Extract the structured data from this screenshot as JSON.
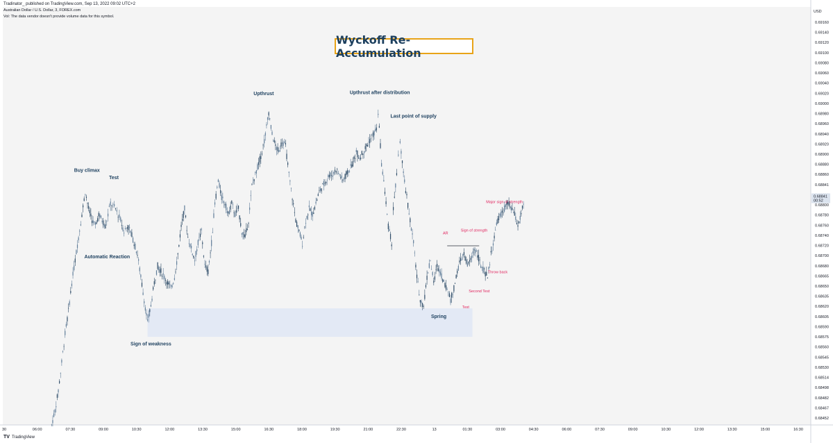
{
  "header": {
    "publisher": "Tradinator_ published on TradingView.com, Sep 13, 2022 09:02 UTC+2",
    "symbol": "Australian Dollar / U.S. Dollar, 3, FOREX.com",
    "volume_note": "Vol: The data vendor doesn't provide volume data for this symbol."
  },
  "footer": {
    "brand": "TradingView"
  },
  "colors": {
    "plot_bg": "#f4f4f4",
    "candle": "#607d99",
    "candle_dark": "#2c4a66",
    "annotation_navy": "#1c3f5e",
    "annotation_red": "#e0245e",
    "zone_fill": "#dfe6f5",
    "title_border": "#e8a317",
    "price_tag": "#dbe3ee"
  },
  "chart_data": {
    "type": "candlestick",
    "title": "Wyckoff Re-Accumulation",
    "currency": "USD",
    "ylim": [
      0.6844,
      0.69175
    ],
    "y_ticks": [
      "0.69160",
      "0.69140",
      "0.69120",
      "0.69100",
      "0.69080",
      "0.69060",
      "0.69040",
      "0.69020",
      "0.69000",
      "0.68980",
      "0.68960",
      "0.68940",
      "0.68920",
      "0.68900",
      "0.68880",
      "0.68860",
      "0.68841",
      "0.68820",
      "0.68800",
      "0.68780",
      "0.68760",
      "0.68740",
      "0.68720",
      "0.68700",
      "0.68680",
      "0.68665",
      "0.68650",
      "0.68635",
      "0.68620",
      "0.68605",
      "0.68590",
      "0.68575",
      "0.68560",
      "0.68545",
      "0.68530",
      "0.68514",
      "0.68498",
      "0.68482",
      "0.68467",
      "0.68452"
    ],
    "x_ticks": [
      "30",
      "06:00",
      "07:30",
      "09:00",
      "10:30",
      "12:00",
      "13:30",
      "15:00",
      "16:30",
      "18:00",
      "19:30",
      "21:00",
      "22:30",
      "13",
      "01:30",
      "03:00",
      "04:30",
      "06:00",
      "07:30",
      "09:00",
      "10:30",
      "12:00",
      "13:30",
      "15:00",
      "16:30"
    ],
    "x_domain": [
      0,
      24
    ],
    "last_price": {
      "value": "0.68841",
      "countdown": "00:52"
    },
    "path_points": [
      [
        1.45,
        0.6844
      ],
      [
        1.55,
        0.68465
      ],
      [
        1.65,
        0.685
      ],
      [
        1.75,
        0.6855
      ],
      [
        1.85,
        0.686
      ],
      [
        1.95,
        0.6864
      ],
      [
        2.05,
        0.6869
      ],
      [
        2.15,
        0.6873
      ],
      [
        2.25,
        0.6877
      ],
      [
        2.35,
        0.6881
      ],
      [
        2.45,
        0.6885
      ],
      [
        2.55,
        0.6882
      ],
      [
        2.65,
        0.688
      ],
      [
        2.75,
        0.6879
      ],
      [
        2.85,
        0.6881
      ],
      [
        2.95,
        0.688
      ],
      [
        3.05,
        0.6879
      ],
      [
        3.2,
        0.6883
      ],
      [
        3.35,
        0.6882
      ],
      [
        3.5,
        0.688
      ],
      [
        3.6,
        0.6878
      ],
      [
        3.7,
        0.6879
      ],
      [
        3.8,
        0.6878
      ],
      [
        3.9,
        0.6876
      ],
      [
        4.0,
        0.6874
      ],
      [
        4.1,
        0.687
      ],
      [
        4.2,
        0.6866
      ],
      [
        4.3,
        0.6862
      ],
      [
        4.4,
        0.6865
      ],
      [
        4.5,
        0.6869
      ],
      [
        4.6,
        0.6872
      ],
      [
        4.7,
        0.6871
      ],
      [
        4.8,
        0.687
      ],
      [
        4.9,
        0.6869
      ],
      [
        5.0,
        0.6868
      ],
      [
        5.1,
        0.687
      ],
      [
        5.2,
        0.6874
      ],
      [
        5.3,
        0.6879
      ],
      [
        5.4,
        0.6882
      ],
      [
        5.5,
        0.6877
      ],
      [
        5.6,
        0.6875
      ],
      [
        5.7,
        0.6873
      ],
      [
        5.8,
        0.6876
      ],
      [
        5.9,
        0.6878
      ],
      [
        6.0,
        0.6872
      ],
      [
        6.1,
        0.6871
      ],
      [
        6.2,
        0.6876
      ],
      [
        6.3,
        0.6883
      ],
      [
        6.4,
        0.6887
      ],
      [
        6.5,
        0.6884
      ],
      [
        6.6,
        0.6883
      ],
      [
        6.7,
        0.6881
      ],
      [
        6.8,
        0.6883
      ],
      [
        6.9,
        0.6881
      ],
      [
        7.0,
        0.6882
      ],
      [
        7.1,
        0.6878
      ],
      [
        7.2,
        0.6877
      ],
      [
        7.3,
        0.688
      ],
      [
        7.4,
        0.6886
      ],
      [
        7.5,
        0.6888
      ],
      [
        7.6,
        0.689
      ],
      [
        7.7,
        0.6892
      ],
      [
        7.8,
        0.6895
      ],
      [
        7.9,
        0.6899
      ],
      [
        8.0,
        0.6895
      ],
      [
        8.1,
        0.6893
      ],
      [
        8.2,
        0.6892
      ],
      [
        8.3,
        0.6894
      ],
      [
        8.4,
        0.6893
      ],
      [
        8.5,
        0.6888
      ],
      [
        8.6,
        0.6884
      ],
      [
        8.7,
        0.688
      ],
      [
        8.8,
        0.6878
      ],
      [
        8.9,
        0.6876
      ],
      [
        9.0,
        0.688
      ],
      [
        9.1,
        0.6882
      ],
      [
        9.2,
        0.6881
      ],
      [
        9.3,
        0.6883
      ],
      [
        9.4,
        0.6885
      ],
      [
        9.5,
        0.6886
      ],
      [
        9.6,
        0.6887
      ],
      [
        9.7,
        0.6888
      ],
      [
        9.8,
        0.6888
      ],
      [
        9.9,
        0.6889
      ],
      [
        10.0,
        0.6888
      ],
      [
        10.1,
        0.6887
      ],
      [
        10.2,
        0.6888
      ],
      [
        10.3,
        0.6889
      ],
      [
        10.4,
        0.689
      ],
      [
        10.5,
        0.6892
      ],
      [
        10.6,
        0.6891
      ],
      [
        10.7,
        0.6892
      ],
      [
        10.8,
        0.6893
      ],
      [
        10.9,
        0.6894
      ],
      [
        11.0,
        0.6895
      ],
      [
        11.1,
        0.6896
      ],
      [
        11.15,
        0.6899
      ],
      [
        11.25,
        0.689
      ],
      [
        11.35,
        0.6885
      ],
      [
        11.45,
        0.6879
      ],
      [
        11.55,
        0.6876
      ],
      [
        11.6,
        0.6882
      ],
      [
        11.7,
        0.6888
      ],
      [
        11.75,
        0.6891
      ],
      [
        11.8,
        0.6894
      ],
      [
        11.9,
        0.6888
      ],
      [
        12.0,
        0.6884
      ],
      [
        12.1,
        0.688
      ],
      [
        12.2,
        0.6876
      ],
      [
        12.3,
        0.687
      ],
      [
        12.4,
        0.6866
      ],
      [
        12.5,
        0.6865
      ],
      [
        12.6,
        0.687
      ],
      [
        12.7,
        0.6873
      ],
      [
        12.8,
        0.6869
      ],
      [
        12.9,
        0.6872
      ],
      [
        13.0,
        0.6871
      ],
      [
        13.1,
        0.6869
      ],
      [
        13.2,
        0.6868
      ],
      [
        13.3,
        0.6866
      ],
      [
        13.4,
        0.6868
      ],
      [
        13.5,
        0.6871
      ],
      [
        13.6,
        0.6873
      ],
      [
        13.7,
        0.6874
      ],
      [
        13.8,
        0.6872
      ],
      [
        13.9,
        0.6873
      ],
      [
        14.0,
        0.6875
      ],
      [
        14.1,
        0.6874
      ],
      [
        14.2,
        0.6872
      ],
      [
        14.3,
        0.6871
      ],
      [
        14.4,
        0.687
      ],
      [
        14.5,
        0.6874
      ],
      [
        14.6,
        0.6877
      ],
      [
        14.7,
        0.688
      ],
      [
        14.8,
        0.6881
      ],
      [
        14.9,
        0.6882
      ],
      [
        15.0,
        0.6883
      ],
      [
        15.1,
        0.6882
      ],
      [
        15.2,
        0.6881
      ],
      [
        15.3,
        0.6879
      ],
      [
        15.4,
        0.6881
      ],
      [
        15.5,
        0.6884
      ]
    ],
    "zones": [
      {
        "label": "re-accumulation-range",
        "x_from": 4.3,
        "x_to": 13.95,
        "y_from": 0.68595,
        "y_to": 0.68645
      }
    ],
    "annotations": [
      {
        "text": "Wyckoff Re-Accumulation",
        "role": "title"
      },
      {
        "text": "Buy climax",
        "x": 2.5,
        "y": 0.68885,
        "color": "navy"
      },
      {
        "text": "Test",
        "x": 3.3,
        "y": 0.68872,
        "color": "navy"
      },
      {
        "text": "Automatic Reaction",
        "x": 3.1,
        "y": 0.68733,
        "color": "navy"
      },
      {
        "text": "Sign of weakness",
        "x": 4.4,
        "y": 0.6858,
        "color": "navy"
      },
      {
        "text": "Upthrust",
        "x": 7.75,
        "y": 0.6902,
        "color": "navy"
      },
      {
        "text": "Upthrust after distribution",
        "x": 11.2,
        "y": 0.69022,
        "color": "navy"
      },
      {
        "text": "Last point of supply",
        "x": 12.2,
        "y": 0.6898,
        "color": "navy"
      },
      {
        "text": "Spring",
        "x": 12.95,
        "y": 0.68628,
        "color": "navy"
      },
      {
        "text": "AR",
        "x": 13.15,
        "y": 0.68775,
        "color": "red"
      },
      {
        "text": "Sign of strength",
        "x": 14.0,
        "y": 0.6878,
        "color": "red"
      },
      {
        "text": "Major sign of strength",
        "x": 14.9,
        "y": 0.6883,
        "color": "red"
      },
      {
        "text": "Throw back",
        "x": 14.7,
        "y": 0.68707,
        "color": "red"
      },
      {
        "text": "Second Test",
        "x": 14.15,
        "y": 0.68673,
        "color": "red"
      },
      {
        "text": "Test",
        "x": 13.75,
        "y": 0.68645,
        "color": "red"
      }
    ],
    "level_lines": [
      {
        "x_from": 13.2,
        "x_to": 14.15,
        "y": 0.68755
      }
    ]
  }
}
